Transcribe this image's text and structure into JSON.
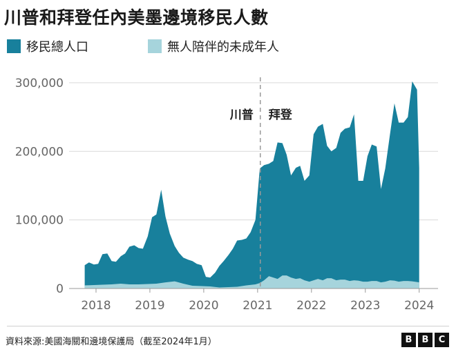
{
  "title": "川普和拜登任內美墨邊境移民人數",
  "colors": {
    "total": "#18809c",
    "minors": "#a6d4dc",
    "grid": "#d9d9d9",
    "axis_text": "#666666"
  },
  "chart_data": {
    "type": "area",
    "title": "川普和拜登任內美墨邊境移民人數",
    "xlabel": "",
    "ylabel": "",
    "xlim": [
      2017.5,
      2024.35
    ],
    "ylim": [
      0,
      310000
    ],
    "y_ticks": [
      0,
      100000,
      200000,
      300000
    ],
    "y_tick_labels": [
      "0",
      "100,000",
      "200,000",
      "300,000"
    ],
    "x_ticks": [
      2018,
      2019,
      2020,
      2021,
      2022,
      2023,
      2024
    ],
    "x_tick_labels": [
      "2018",
      "2019",
      "2020",
      "2021",
      "2022",
      "2023",
      "2024"
    ],
    "legend": [
      "移民總人口",
      "無人陪伴的未成年人"
    ],
    "legend_position": "top-left",
    "grid": true,
    "divider": {
      "x": 2021.05,
      "left_label": "川普",
      "right_label": "拜登"
    },
    "series": [
      {
        "name": "移民總人口",
        "color": "#18809c",
        "x": [
          2017.79,
          2017.87,
          2017.96,
          2018.04,
          2018.12,
          2018.21,
          2018.29,
          2018.37,
          2018.46,
          2018.54,
          2018.62,
          2018.71,
          2018.79,
          2018.87,
          2018.96,
          2019.04,
          2019.12,
          2019.21,
          2019.29,
          2019.37,
          2019.46,
          2019.54,
          2019.62,
          2019.71,
          2019.79,
          2019.87,
          2019.96,
          2020.04,
          2020.12,
          2020.21,
          2020.29,
          2020.37,
          2020.46,
          2020.54,
          2020.62,
          2020.71,
          2020.79,
          2020.87,
          2020.96,
          2021.04,
          2021.12,
          2021.21,
          2021.29,
          2021.37,
          2021.46,
          2021.54,
          2021.62,
          2021.71,
          2021.79,
          2021.87,
          2021.96,
          2022.04,
          2022.12,
          2022.21,
          2022.29,
          2022.37,
          2022.46,
          2022.54,
          2022.62,
          2022.71,
          2022.79,
          2022.87,
          2022.96,
          2023.04,
          2023.12,
          2023.21,
          2023.29,
          2023.37,
          2023.46,
          2023.54,
          2023.62,
          2023.71,
          2023.79,
          2023.87,
          2023.96,
          2024.0
        ],
        "values": [
          34000,
          38000,
          35000,
          36000,
          50000,
          51000,
          40000,
          39000,
          47000,
          51000,
          61000,
          63000,
          59000,
          58000,
          76000,
          104000,
          108000,
          144000,
          105000,
          80000,
          62000,
          52000,
          45000,
          42000,
          40000,
          36000,
          34000,
          17000,
          16000,
          23000,
          33000,
          40000,
          49000,
          58000,
          70000,
          71000,
          73000,
          82000,
          100000,
          175000,
          180000,
          182000,
          186000,
          213000,
          212000,
          195000,
          165000,
          176000,
          179000,
          157000,
          165000,
          225000,
          236000,
          240000,
          208000,
          200000,
          205000,
          227000,
          233000,
          235000,
          254000,
          157000,
          157000,
          193000,
          210000,
          207000,
          145000,
          175000,
          226000,
          270000,
          242000,
          242000,
          250000,
          302000,
          290000,
          176000
        ]
      },
      {
        "name": "無人陪伴的未成年人",
        "color": "#a6d4dc",
        "x": [
          2017.79,
          2017.96,
          2018.12,
          2018.29,
          2018.46,
          2018.62,
          2018.79,
          2018.96,
          2019.12,
          2019.29,
          2019.46,
          2019.62,
          2019.79,
          2019.96,
          2020.12,
          2020.29,
          2020.46,
          2020.62,
          2020.79,
          2020.96,
          2021.04,
          2021.12,
          2021.21,
          2021.29,
          2021.37,
          2021.46,
          2021.54,
          2021.62,
          2021.71,
          2021.79,
          2021.87,
          2021.96,
          2022.04,
          2022.12,
          2022.21,
          2022.29,
          2022.37,
          2022.46,
          2022.54,
          2022.62,
          2022.71,
          2022.79,
          2022.87,
          2022.96,
          2023.04,
          2023.12,
          2023.21,
          2023.29,
          2023.37,
          2023.46,
          2023.54,
          2023.62,
          2023.71,
          2023.79,
          2023.87,
          2023.96,
          2024.0
        ],
        "values": [
          4500,
          5000,
          5500,
          6000,
          7000,
          6000,
          6000,
          6500,
          7000,
          9000,
          10500,
          7000,
          4000,
          3500,
          3000,
          1500,
          2000,
          2500,
          4500,
          6000,
          8000,
          12000,
          18000,
          16000,
          14000,
          19000,
          19000,
          16000,
          14000,
          15000,
          12000,
          10000,
          12000,
          14000,
          12000,
          15000,
          15000,
          12000,
          13000,
          13000,
          11000,
          12000,
          11500,
          10000,
          10000,
          11000,
          11000,
          9000,
          10000,
          12000,
          11500,
          10000,
          11000,
          11000,
          10500,
          9500,
          9000
        ]
      }
    ],
    "annotations": [
      "川普",
      "拜登"
    ]
  },
  "source": "資料來源:美國海關和邊境保護局（截至2024年1月）",
  "brand": {
    "letters": [
      "B",
      "B",
      "C"
    ]
  }
}
